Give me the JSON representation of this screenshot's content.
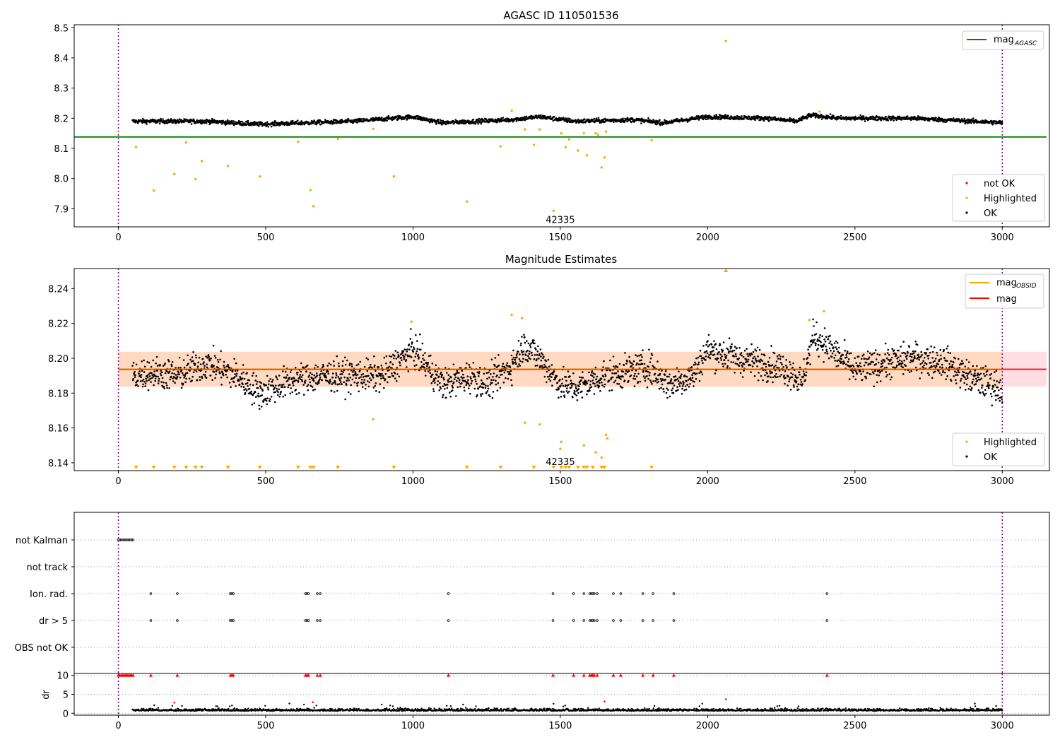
{
  "chart_data": [
    {
      "type": "scatter",
      "title": "AGASC ID 110501536",
      "xlim": [
        -150,
        3160
      ],
      "ylim": [
        7.84,
        8.51
      ],
      "xticks": [
        0,
        500,
        1000,
        1500,
        2000,
        2500,
        3000
      ],
      "yticks": [
        7.9,
        8.0,
        8.1,
        8.2,
        8.3,
        8.4,
        8.5
      ],
      "ytick_labels": [
        "7.9",
        "8.0",
        "8.1",
        "8.2",
        "8.3",
        "8.4",
        "8.5"
      ],
      "vlines": [
        0,
        3000
      ],
      "mag_agasc": 8.138,
      "annotation": {
        "text": "42335",
        "x": 1500,
        "y": 7.865
      },
      "ok_series": {
        "name": "OK",
        "x_start": 48,
        "x_end": 3000,
        "base": 8.19,
        "trend": [
          [
            48,
            8.19
          ],
          [
            300,
            8.19
          ],
          [
            480,
            8.18
          ],
          [
            800,
            8.19
          ],
          [
            1000,
            8.205
          ],
          [
            1100,
            8.185
          ],
          [
            1330,
            8.195
          ],
          [
            1430,
            8.205
          ],
          [
            1550,
            8.19
          ],
          [
            1750,
            8.195
          ],
          [
            1850,
            8.185
          ],
          [
            2000,
            8.205
          ],
          [
            2200,
            8.2
          ],
          [
            2300,
            8.19
          ],
          [
            2350,
            8.21
          ],
          [
            2450,
            8.2
          ],
          [
            2700,
            8.2
          ],
          [
            2900,
            8.19
          ],
          [
            3000,
            8.185
          ]
        ],
        "amplitude": 0.008
      },
      "highlighted": [
        [
          60,
          8.105
        ],
        [
          120,
          7.96
        ],
        [
          190,
          8.015
        ],
        [
          230,
          8.12
        ],
        [
          262,
          7.998
        ],
        [
          283,
          8.058
        ],
        [
          372,
          8.042
        ],
        [
          480,
          8.007
        ],
        [
          610,
          8.122
        ],
        [
          652,
          7.962
        ],
        [
          662,
          7.908
        ],
        [
          745,
          8.132
        ],
        [
          865,
          8.165
        ],
        [
          935,
          8.007
        ],
        [
          1183,
          7.924
        ],
        [
          1297,
          8.107
        ],
        [
          1335,
          8.225
        ],
        [
          1380,
          8.163
        ],
        [
          1410,
          8.112
        ],
        [
          1430,
          8.163
        ],
        [
          1477,
          7.893
        ],
        [
          1503,
          8.15
        ],
        [
          1518,
          8.104
        ],
        [
          1530,
          8.13
        ],
        [
          1560,
          8.093
        ],
        [
          1580,
          8.15
        ],
        [
          1590,
          8.077
        ],
        [
          1620,
          8.15
        ],
        [
          1628,
          8.145
        ],
        [
          1640,
          8.037
        ],
        [
          1650,
          8.07
        ],
        [
          1655,
          8.156
        ],
        [
          1810,
          8.127
        ],
        [
          2062,
          8.456
        ],
        [
          2380,
          8.222
        ]
      ],
      "legend": [
        {
          "label": "mag",
          "sub": "AGASC",
          "color": "#008000",
          "kind": "line"
        },
        {
          "label": "not OK",
          "color": "#ff0000",
          "kind": "dot"
        },
        {
          "label": "Highlighted",
          "color": "#ffa500",
          "kind": "dot"
        },
        {
          "label": "OK",
          "color": "#000000",
          "kind": "dot"
        }
      ]
    },
    {
      "type": "scatter",
      "title": "Magnitude Estimates",
      "xlim": [
        -150,
        3160
      ],
      "ylim": [
        8.1355,
        8.2515
      ],
      "xticks": [
        0,
        500,
        1000,
        1500,
        2000,
        2500,
        3000
      ],
      "yticks": [
        8.14,
        8.16,
        8.18,
        8.2,
        8.22,
        8.24
      ],
      "ytick_labels": [
        "8.14",
        "8.16",
        "8.18",
        "8.20",
        "8.22",
        "8.24"
      ],
      "vlines": [
        0,
        3000
      ],
      "mag": 8.1937,
      "band_outer": [
        8.1837,
        8.2037
      ],
      "band_inner": [
        8.1837,
        8.2037
      ],
      "band_inner_x": [
        0,
        3000
      ],
      "annotation": {
        "text": "42335",
        "x": 1500,
        "y": 8.1395
      },
      "ok_series": {
        "name": "OK",
        "x_start": 48,
        "x_end": 3000,
        "trend": [
          [
            48,
            8.19
          ],
          [
            120,
            8.192
          ],
          [
            200,
            8.19
          ],
          [
            300,
            8.197
          ],
          [
            400,
            8.19
          ],
          [
            480,
            8.18
          ],
          [
            600,
            8.188
          ],
          [
            700,
            8.19
          ],
          [
            800,
            8.19
          ],
          [
            900,
            8.19
          ],
          [
            950,
            8.198
          ],
          [
            1000,
            8.205
          ],
          [
            1050,
            8.195
          ],
          [
            1100,
            8.185
          ],
          [
            1200,
            8.19
          ],
          [
            1250,
            8.185
          ],
          [
            1330,
            8.195
          ],
          [
            1380,
            8.208
          ],
          [
            1430,
            8.2
          ],
          [
            1500,
            8.185
          ],
          [
            1560,
            8.183
          ],
          [
            1650,
            8.19
          ],
          [
            1720,
            8.192
          ],
          [
            1800,
            8.195
          ],
          [
            1870,
            8.185
          ],
          [
            1950,
            8.19
          ],
          [
            2000,
            8.205
          ],
          [
            2100,
            8.2
          ],
          [
            2200,
            8.197
          ],
          [
            2280,
            8.193
          ],
          [
            2320,
            8.186
          ],
          [
            2360,
            8.213
          ],
          [
            2420,
            8.205
          ],
          [
            2500,
            8.193
          ],
          [
            2600,
            8.197
          ],
          [
            2700,
            8.2
          ],
          [
            2800,
            8.198
          ],
          [
            2900,
            8.188
          ],
          [
            3000,
            8.183
          ]
        ],
        "amplitude": 0.009
      },
      "highlighted": [
        [
          865,
          8.165
        ],
        [
          995,
          8.221
        ],
        [
          1335,
          8.225
        ],
        [
          1370,
          8.223
        ],
        [
          1380,
          8.163
        ],
        [
          1430,
          8.162
        ],
        [
          1500,
          8.148
        ],
        [
          1503,
          8.152
        ],
        [
          1580,
          8.15
        ],
        [
          1620,
          8.146
        ],
        [
          1640,
          8.143
        ],
        [
          1655,
          8.156
        ],
        [
          1660,
          8.154
        ],
        [
          2345,
          8.222
        ],
        [
          2395,
          8.227
        ]
      ],
      "clipped_low": [
        60,
        120,
        190,
        230,
        262,
        283,
        372,
        480,
        610,
        652,
        662,
        745,
        935,
        1183,
        1297,
        1410,
        1477,
        1503,
        1518,
        1530,
        1560,
        1580,
        1590,
        1610,
        1640,
        1650,
        1810
      ],
      "clipped_high": [
        2062
      ],
      "legend_lines": [
        {
          "label": "mag",
          "sub": "OBSID",
          "color": "#ffa500",
          "kind": "line"
        },
        {
          "label": "mag",
          "color": "#ff0000",
          "kind": "line"
        }
      ],
      "legend_points": [
        {
          "label": "Highlighted",
          "color": "#ffa500",
          "kind": "dot"
        },
        {
          "label": "OK",
          "color": "#000000",
          "kind": "dot"
        }
      ]
    },
    {
      "type": "scatter",
      "title": "",
      "xlim": [
        -150,
        3160
      ],
      "categories": [
        "not Kalman",
        "not track",
        "Ion. rad.",
        "dr > 5",
        "OBS not OK"
      ],
      "vlines": [
        0,
        3000
      ],
      "flags": {
        "not Kalman": [
          0,
          5,
          10,
          15,
          20,
          25,
          30,
          35,
          40,
          45,
          50
        ],
        "not track": [],
        "Ion. rad.": [
          110,
          200,
          380,
          385,
          390,
          635,
          640,
          645,
          675,
          685,
          1120,
          1475,
          1545,
          1580,
          1600,
          1605,
          1610,
          1615,
          1625,
          1680,
          1705,
          1780,
          1815,
          1885,
          2405
        ],
        "dr > 5": [
          110,
          200,
          380,
          385,
          390,
          635,
          640,
          645,
          675,
          685,
          1120,
          1475,
          1545,
          1580,
          1600,
          1605,
          1610,
          1615,
          1625,
          1680,
          1705,
          1780,
          1815,
          1885,
          2405
        ],
        "OBS not OK": []
      }
    },
    {
      "type": "scatter",
      "title": "",
      "ylabel": "dr",
      "xlim": [
        -150,
        3160
      ],
      "ylim": [
        -0.5,
        10.5
      ],
      "xticks": [
        0,
        500,
        1000,
        1500,
        2000,
        2500,
        3000
      ],
      "yticks": [
        0,
        5,
        10
      ],
      "ytick_labels": [
        "0",
        "5",
        "10"
      ],
      "vlines": [
        0,
        3000
      ],
      "ok_series": {
        "name": "OK",
        "x_start": 48,
        "x_end": 3000,
        "base": 0.6,
        "amplitude": 0.5
      },
      "clipped_top": [
        0,
        5,
        10,
        15,
        20,
        25,
        30,
        35,
        40,
        45,
        50,
        110,
        200,
        380,
        385,
        390,
        635,
        640,
        645,
        675,
        685,
        1120,
        1475,
        1545,
        1580,
        1600,
        1605,
        1610,
        1615,
        1625,
        1680,
        1705,
        1780,
        1815,
        1885,
        2405
      ],
      "red_points": [
        [
          190,
          2.8
        ],
        [
          660,
          2.9
        ],
        [
          1650,
          3.1
        ],
        [
          2062,
          3.7
        ]
      ],
      "black_extra": [
        [
          1477,
          2.5
        ],
        [
          630,
          2.3
        ],
        [
          1510,
          1.8
        ]
      ]
    }
  ]
}
